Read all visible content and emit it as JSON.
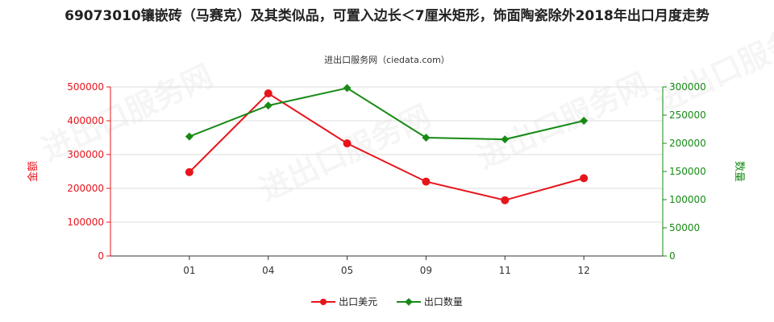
{
  "title": "69073010镶嵌砖（马赛克）及其类似品，可置入边长＜7厘米矩形，饰面陶瓷除外2018年出口月度走势",
  "subtitle": "进出口服务网（ciedata.com）",
  "watermark": "进出口服务网",
  "chart_data": {
    "type": "line",
    "categories": [
      "01",
      "04",
      "05",
      "09",
      "11",
      "12"
    ],
    "series": [
      {
        "name": "出口美元",
        "axis": "left",
        "color": "#e8141b",
        "marker": "circle",
        "values": [
          248000,
          481000,
          333000,
          220000,
          165000,
          230000
        ]
      },
      {
        "name": "出口数量",
        "axis": "right",
        "color": "#178a16",
        "marker": "diamond",
        "values": [
          212000,
          267000,
          298000,
          210000,
          207000,
          240000
        ]
      }
    ],
    "ylabel_left": "金额",
    "ylabel_right": "数量",
    "ylim_left": [
      0,
      500000
    ],
    "ylim_right": [
      0,
      300000
    ],
    "yticks_left": [
      0,
      100000,
      200000,
      300000,
      400000,
      500000
    ],
    "yticks_right": [
      0,
      50000,
      100000,
      150000,
      200000,
      250000,
      300000
    ],
    "left_axis_color": "#e8141b",
    "right_axis_color": "#178a16",
    "grid": true,
    "legend": "bottom-center"
  }
}
